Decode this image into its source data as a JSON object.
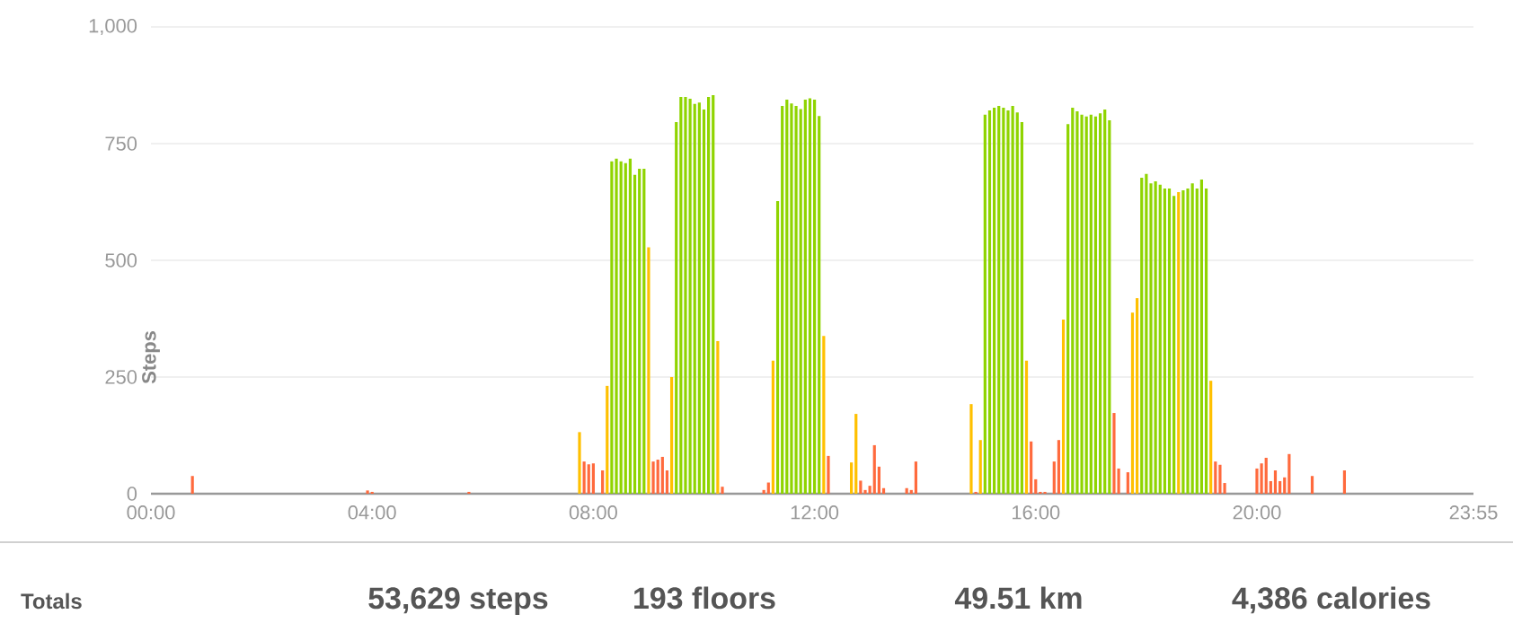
{
  "chart_data": {
    "type": "bar",
    "ylabel": "Steps",
    "annotations": [
      "Totals",
      "53,629 steps",
      "193 floors",
      "49.51 km",
      "4,386 calories"
    ],
    "x": [
      0.75,
      3.9167,
      4,
      5.75,
      7.75,
      7.8333,
      7.9167,
      8,
      8.1667,
      8.25,
      8.3333,
      8.4167,
      8.5,
      8.5833,
      8.6667,
      8.75,
      8.8333,
      8.9167,
      9,
      9.0833,
      9.1667,
      9.25,
      9.3333,
      9.4167,
      9.5,
      9.5833,
      9.6667,
      9.75,
      9.8333,
      9.9167,
      10,
      10.0833,
      10.1667,
      10.25,
      10.3333,
      11.0833,
      11.1667,
      11.25,
      11.3333,
      11.4167,
      11.5,
      11.5833,
      11.6667,
      11.75,
      11.8333,
      11.9167,
      12,
      12.0833,
      12.1667,
      12.25,
      12.6667,
      12.75,
      12.8333,
      12.9167,
      13,
      13.0833,
      13.1667,
      13.25,
      13.6667,
      13.75,
      13.8333,
      14.8333,
      14.9167,
      15,
      15.0833,
      15.1667,
      15.25,
      15.3333,
      15.4167,
      15.5,
      15.5833,
      15.6667,
      15.75,
      15.8333,
      15.9167,
      16,
      16.0833,
      16.1667,
      16.3333,
      16.4167,
      16.5,
      16.5833,
      16.6667,
      16.75,
      16.8333,
      16.9167,
      17,
      17.0833,
      17.1667,
      17.25,
      17.3333,
      17.4167,
      17.5,
      17.6667,
      17.75,
      17.8333,
      17.9167,
      18,
      18.0833,
      18.1667,
      18.25,
      18.3333,
      18.4167,
      18.5,
      18.5833,
      18.6667,
      18.75,
      18.8333,
      18.9167,
      19,
      19.0833,
      19.1667,
      19.25,
      19.3333,
      19.4167,
      20,
      20.0833,
      20.1667,
      20.25,
      20.3333,
      20.4167,
      20.5,
      20.5833,
      21,
      21.5833
    ],
    "values": [
      38,
      7,
      4,
      4,
      132,
      69,
      63,
      65,
      50,
      231,
      712,
      718,
      712,
      708,
      718,
      683,
      696,
      696,
      528,
      69,
      73,
      79,
      50,
      250,
      796,
      850,
      850,
      846,
      835,
      838,
      823,
      850,
      854,
      327,
      15,
      8,
      24,
      285,
      627,
      831,
      844,
      836,
      831,
      824,
      844,
      847,
      844,
      809,
      338,
      81,
      67,
      171,
      28,
      8,
      17,
      104,
      58,
      12,
      12,
      8,
      69,
      192,
      4,
      115,
      812,
      821,
      827,
      831,
      827,
      821,
      831,
      817,
      796,
      285,
      112,
      31,
      4,
      4,
      69,
      115,
      373,
      792,
      827,
      819,
      812,
      808,
      812,
      808,
      815,
      823,
      800,
      173,
      54,
      46,
      388,
      419,
      677,
      685,
      665,
      669,
      662,
      654,
      654,
      638,
      646,
      650,
      654,
      665,
      654,
      673,
      654,
      242,
      69,
      62,
      23,
      54,
      65,
      77,
      27,
      50,
      27,
      35,
      85,
      38,
      50
    ],
    "colors": [
      "#ff6a3d",
      "#ff6a3d",
      "#ff6a3d",
      "#ff6a3d",
      "#ffc000",
      "#ff6a3d",
      "#ff6a3d",
      "#ff6a3d",
      "#ff6a3d",
      "#ffc000",
      "#8fd400",
      "#8fd400",
      "#8fd400",
      "#8fd400",
      "#8fd400",
      "#8fd400",
      "#8fd400",
      "#8fd400",
      "#ffc000",
      "#ff6a3d",
      "#ff6a3d",
      "#ff6a3d",
      "#ff6a3d",
      "#ffc000",
      "#8fd400",
      "#8fd400",
      "#8fd400",
      "#8fd400",
      "#8fd400",
      "#8fd400",
      "#8fd400",
      "#8fd400",
      "#8fd400",
      "#ffc000",
      "#ff6a3d",
      "#ff6a3d",
      "#ff6a3d",
      "#ffc000",
      "#8fd400",
      "#8fd400",
      "#8fd400",
      "#8fd400",
      "#8fd400",
      "#8fd400",
      "#8fd400",
      "#8fd400",
      "#8fd400",
      "#8fd400",
      "#ffc000",
      "#ff6a3d",
      "#ffc000",
      "#ffc000",
      "#ff6a3d",
      "#ff6a3d",
      "#ff6a3d",
      "#ff6a3d",
      "#ff6a3d",
      "#ff6a3d",
      "#ff6a3d",
      "#ff6a3d",
      "#ff6a3d",
      "#ffc000",
      "#ff6a3d",
      "#ffc000",
      "#8fd400",
      "#8fd400",
      "#8fd400",
      "#8fd400",
      "#8fd400",
      "#8fd400",
      "#8fd400",
      "#8fd400",
      "#8fd400",
      "#ffc000",
      "#ff6a3d",
      "#ff6a3d",
      "#ff6a3d",
      "#ff6a3d",
      "#ff6a3d",
      "#ff6a3d",
      "#ffc000",
      "#8fd400",
      "#8fd400",
      "#8fd400",
      "#8fd400",
      "#8fd400",
      "#8fd400",
      "#8fd400",
      "#8fd400",
      "#8fd400",
      "#8fd400",
      "#ff6a3d",
      "#ff6a3d",
      "#ff6a3d",
      "#ffc000",
      "#ffc000",
      "#8fd400",
      "#8fd400",
      "#8fd400",
      "#8fd400",
      "#8fd400",
      "#8fd400",
      "#8fd400",
      "#8fd400",
      "#ffc000",
      "#8fd400",
      "#8fd400",
      "#8fd400",
      "#8fd400",
      "#8fd400",
      "#8fd400",
      "#ffc000",
      "#ff6a3d",
      "#ff6a3d",
      "#ff6a3d",
      "#ff6a3d",
      "#ff6a3d",
      "#ff6a3d",
      "#ff6a3d",
      "#ff6a3d",
      "#ff6a3d",
      "#ff6a3d",
      "#ff6a3d",
      "#ff6a3d",
      "#ff6a3d"
    ],
    "xlim": [
      0,
      23.9167
    ],
    "xticks": [
      {
        "value": 0,
        "label": "00:00"
      },
      {
        "value": 4,
        "label": "04:00"
      },
      {
        "value": 8,
        "label": "08:00"
      },
      {
        "value": 12,
        "label": "12:00"
      },
      {
        "value": 16,
        "label": "16:00"
      },
      {
        "value": 20,
        "label": "20:00"
      },
      {
        "value": 23.9167,
        "label": "23:55"
      }
    ],
    "ylim": [
      0,
      1000
    ],
    "yticks": [
      0,
      250,
      500,
      750,
      {
        "value": 1000,
        "label": "1,000"
      }
    ],
    "grid": "y"
  }
}
